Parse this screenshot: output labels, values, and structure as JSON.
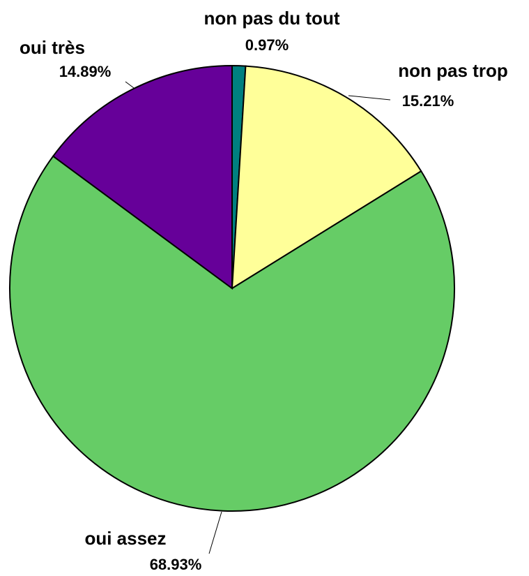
{
  "chart_data": {
    "type": "pie",
    "categories": [
      "non pas du tout",
      "non pas trop",
      "oui assez",
      "oui très"
    ],
    "values": [
      0.97,
      15.21,
      68.93,
      14.89
    ],
    "value_labels": [
      "0.97%",
      "15.21%",
      "68.93%",
      "14.89%"
    ],
    "colors": [
      "#008080",
      "#ffff99",
      "#66cc66",
      "#660099"
    ]
  }
}
